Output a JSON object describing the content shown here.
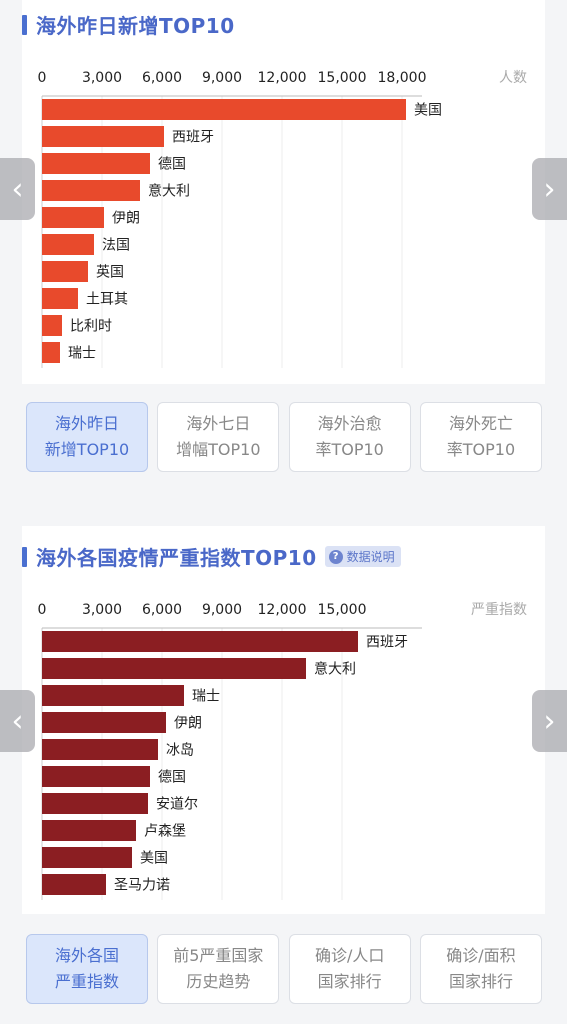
{
  "section1": {
    "title": "海外昨日新增TOP10",
    "tabs": [
      {
        "line1": "海外昨日",
        "line2": "新增TOP10",
        "active": true
      },
      {
        "line1": "海外七日",
        "line2": "增幅TOP10",
        "active": false
      },
      {
        "line1": "海外治愈",
        "line2": "率TOP10",
        "active": false
      },
      {
        "line1": "海外死亡",
        "line2": "率TOP10",
        "active": false
      }
    ]
  },
  "section2": {
    "title": "海外各国疫情严重指数TOP10",
    "badge": "数据说明",
    "tabs": [
      {
        "line1": "海外各国",
        "line2": "严重指数",
        "active": true
      },
      {
        "line1": "前5严重国家",
        "line2": "历史趋势",
        "active": false
      },
      {
        "line1": "确诊/人口",
        "line2": "国家排行",
        "active": false
      },
      {
        "line1": "确诊/面积",
        "line2": "国家排行",
        "active": false
      }
    ]
  },
  "chart_data": [
    {
      "type": "bar",
      "orientation": "horizontal",
      "unit_label": "人数",
      "categories": [
        "美国",
        "西班牙",
        "德国",
        "意大利",
        "伊朗",
        "法国",
        "英国",
        "土耳其",
        "比利时",
        "瑞士"
      ],
      "values": [
        18200,
        6100,
        5400,
        4900,
        3100,
        2600,
        2300,
        1800,
        1000,
        900
      ],
      "ticks": [
        "0",
        "3,000",
        "6,000",
        "9,000",
        "12,000",
        "15,000",
        "18,000"
      ],
      "xlim": [
        0,
        19500
      ],
      "color": "#e84a2c",
      "grid": true
    },
    {
      "type": "bar",
      "orientation": "horizontal",
      "unit_label": "严重指数",
      "categories": [
        "西班牙",
        "意大利",
        "瑞士",
        "伊朗",
        "冰岛",
        "德国",
        "安道尔",
        "卢森堡",
        "美国",
        "圣马力诺"
      ],
      "values": [
        15800,
        13200,
        7100,
        6200,
        5800,
        5400,
        5300,
        4700,
        4500,
        3200
      ],
      "ticks": [
        "0",
        "3,000",
        "6,000",
        "9,000",
        "12,000",
        "15,000"
      ],
      "xlim": [
        0,
        19500
      ],
      "color": "#8b1e22",
      "grid": true
    }
  ]
}
